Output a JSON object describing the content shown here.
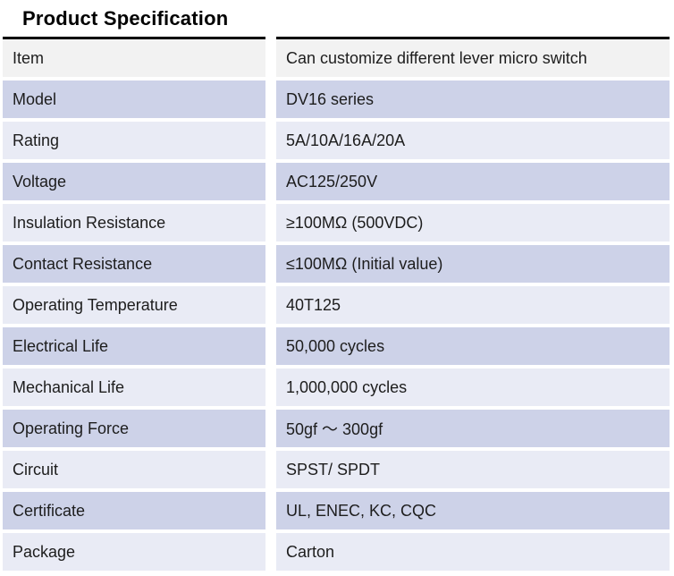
{
  "page": {
    "title": "Product Specification"
  },
  "table": {
    "rows": [
      {
        "label": "Item",
        "value": "Can customize different lever micro switch"
      },
      {
        "label": "Model",
        "value": "DV16 series"
      },
      {
        "label": "Rating",
        "value": "5A/10A/16A/20A"
      },
      {
        "label": "Voltage",
        "value": "AC125/250V"
      },
      {
        "label": "Insulation Resistance",
        "value": "≥100MΩ (500VDC)"
      },
      {
        "label": "Contact Resistance",
        "value": "≤100MΩ (Initial value)"
      },
      {
        "label": "Operating Temperature",
        "value": "40T125"
      },
      {
        "label": "Electrical Life",
        "value": "50,000 cycles"
      },
      {
        "label": "Mechanical Life",
        "value": "1,000,000 cycles"
      },
      {
        "label": "Operating Force",
        "value": "50gf ～ 300gf"
      },
      {
        "label": "Circuit",
        "value": "SPST/ SPDT"
      },
      {
        "label": "Certificate",
        "value": "UL, ENEC, KC, CQC"
      },
      {
        "label": "Package",
        "value": "Carton"
      }
    ],
    "colors": {
      "first_row_bg": "#f2f2f2",
      "alt_row_dark": "#cdd2e8",
      "alt_row_light": "#e9ebf5",
      "top_border": "#000000",
      "text": "#1d1d1d"
    }
  }
}
